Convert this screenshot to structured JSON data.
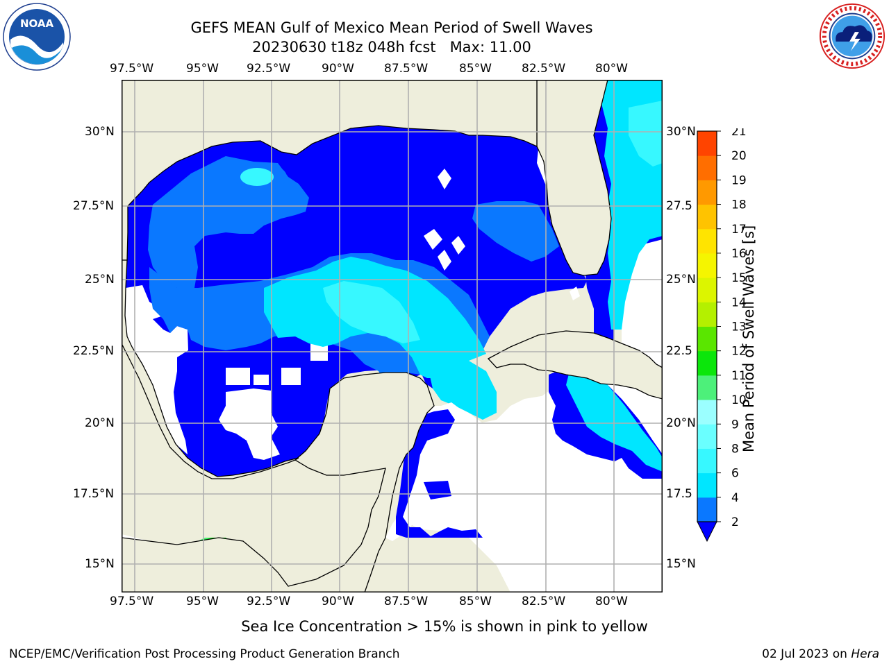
{
  "header": {
    "title_line1": "GEFS MEAN Gulf of Mexico Mean Period of Swell Waves",
    "title_line2": "20230630 t18z 048h fcst   Max: 11.00"
  },
  "logos": {
    "left": {
      "icon": "noaa-logo-icon",
      "text": "NOAA"
    },
    "right": {
      "icon": "national-weather-service-logo-icon"
    }
  },
  "map": {
    "lon_labels": [
      "97.5°W",
      "95°W",
      "92.5°W",
      "90°W",
      "87.5°W",
      "85°W",
      "82.5°W",
      "80°W"
    ],
    "lat_labels_left": [
      "30°N",
      "27.5°N",
      "25°N",
      "22.5°N",
      "20°N",
      "17.5°N",
      "15°N"
    ],
    "lat_labels_right": [
      "30°N",
      "27.5",
      "25°N",
      "22.5",
      "20°N",
      "17.5",
      "15°N"
    ],
    "land_color": "#eeeedc",
    "no_data_color": "#ffffff",
    "grid_color": "#b0b0b0"
  },
  "colorbar": {
    "label": "Mean Period of Swell Waves [s]",
    "ticks": [
      "2",
      "4",
      "6",
      "8",
      "9",
      "10",
      "11",
      "12",
      "13",
      "14",
      "15",
      "16",
      "17",
      "18",
      "19",
      "20",
      "21"
    ],
    "colors": [
      "#0a78ff",
      "#00e6ff",
      "#37f8ff",
      "#6affff",
      "#9bffff",
      "#4df07a",
      "#0be60b",
      "#5ae600",
      "#b4f000",
      "#dcf500",
      "#f5f500",
      "#ffe400",
      "#ffc300",
      "#ff9900",
      "#ff6e00",
      "#ff4400",
      "#ff1400"
    ],
    "under_color": "#0000ff"
  },
  "subtitle": "Sea Ice Concentration > 15% is shown in pink to yellow",
  "footer": {
    "left": "NCEP/EMC/Verification Post Processing Product Generation Branch",
    "date": "02 Jul 2023 on ",
    "machine": "Hera"
  }
}
